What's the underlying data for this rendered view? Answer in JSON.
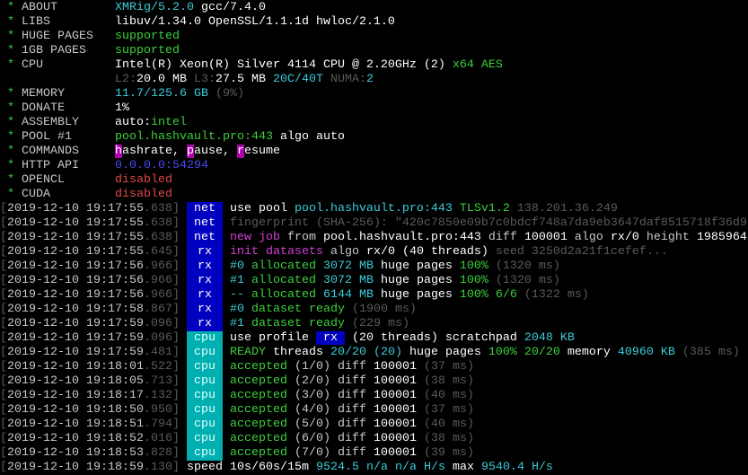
{
  "colors": {
    "tag_blue": "#0000c0",
    "tag_cyan": "#00b0b0",
    "green": "#3cd03c",
    "cyan": "#3ccbd8",
    "gray": "#5a5a5a",
    "red": "#e04848",
    "blue": "#4848f0",
    "magenta": "#b000b0"
  },
  "summary": [
    {
      "label": "ABOUT",
      "segs": [
        {
          "t": "XMRig/5.2.0",
          "c": "cyan"
        },
        {
          "t": " gcc/7.4.0",
          "c": "bright"
        }
      ]
    },
    {
      "label": "LIBS",
      "segs": [
        {
          "t": "libuv/1.34.0 OpenSSL/1.1.1d hwloc/2.1.0",
          "c": "bright"
        }
      ]
    },
    {
      "label": "HUGE PAGES",
      "segs": [
        {
          "t": "supported",
          "c": "green"
        }
      ]
    },
    {
      "label": "1GB PAGES",
      "segs": [
        {
          "t": "supported",
          "c": "green"
        }
      ]
    },
    {
      "label": "CPU",
      "segs": [
        {
          "t": "Intel(R) Xeon(R) Silver 4114 CPU @ 2.20GHz (2)",
          "c": "bright"
        },
        {
          "t": " x64 AES",
          "c": "green"
        }
      ]
    },
    {
      "label": "",
      "segs": [
        {
          "t": "L2:",
          "c": "gray"
        },
        {
          "t": "20.0 MB",
          "c": "bright"
        },
        {
          "t": " L3:",
          "c": "gray"
        },
        {
          "t": "27.5 MB",
          "c": "bright"
        },
        {
          "t": " 20C/40T",
          "c": "cyan"
        },
        {
          "t": " NUMA:",
          "c": "gray"
        },
        {
          "t": "2",
          "c": "cyan"
        }
      ]
    },
    {
      "label": "MEMORY",
      "segs": [
        {
          "t": "11.7/125.6 GB",
          "c": "cyan"
        },
        {
          "t": " (9%)",
          "c": "gray"
        }
      ]
    },
    {
      "label": "DONATE",
      "segs": [
        {
          "t": "1%",
          "c": "bright"
        }
      ]
    },
    {
      "label": "ASSEMBLY",
      "segs": [
        {
          "t": "auto:",
          "c": "bright"
        },
        {
          "t": "intel",
          "c": "green"
        }
      ]
    },
    {
      "label": "POOL #1",
      "segs": [
        {
          "t": "pool.hashvault.pro:443",
          "c": "green"
        },
        {
          "t": " algo auto",
          "c": "bright"
        }
      ]
    },
    {
      "label": "COMMANDS",
      "segs": [
        {
          "t": "h",
          "c": "hl"
        },
        {
          "t": "ashrate, ",
          "c": "bright"
        },
        {
          "t": "p",
          "c": "hl"
        },
        {
          "t": "ause, ",
          "c": "bright"
        },
        {
          "t": "r",
          "c": "hl"
        },
        {
          "t": "esume",
          "c": "bright"
        }
      ]
    },
    {
      "label": "HTTP API",
      "segs": [
        {
          "t": "0.0.0.0:54294",
          "c": "blue"
        }
      ]
    },
    {
      "label": "OPENCL",
      "segs": [
        {
          "t": "disabled",
          "c": "red"
        }
      ]
    },
    {
      "label": "CUDA",
      "segs": [
        {
          "t": "disabled",
          "c": "red"
        }
      ]
    }
  ],
  "log": [
    {
      "date": "2019-12-10 19:17:55",
      "ms": ".638",
      "tag": "net",
      "segs": [
        {
          "t": "use pool ",
          "c": "bright"
        },
        {
          "t": "pool.hashvault.pro:443",
          "c": "cyan"
        },
        {
          "t": " TLSv1.2",
          "c": "green"
        },
        {
          "t": " 138.201.36.249",
          "c": "gray"
        }
      ]
    },
    {
      "date": "2019-12-10 19:17:55",
      "ms": ".638",
      "tag": "net",
      "segs": [
        {
          "t": "fingerprint (SHA-256): \"420c7850e09b7c0bdcf748a7da9eb3647daf8515718f36d9",
          "c": "gray"
        }
      ]
    },
    {
      "date": "2019-12-10 19:17:55",
      "ms": ".638",
      "tag": "net",
      "segs": [
        {
          "t": "new job",
          "c": "magenta"
        },
        {
          "t": " from ",
          "c": "white"
        },
        {
          "t": "pool.hashvault.pro:443",
          "c": "bright"
        },
        {
          "t": " diff ",
          "c": "white"
        },
        {
          "t": "100001",
          "c": "bright"
        },
        {
          "t": " algo ",
          "c": "white"
        },
        {
          "t": "rx/0",
          "c": "bright"
        },
        {
          "t": " height ",
          "c": "white"
        },
        {
          "t": "1985964",
          "c": "bright"
        }
      ]
    },
    {
      "date": "2019-12-10 19:17:55",
      "ms": ".645",
      "tag": "rx",
      "segs": [
        {
          "t": "init datasets",
          "c": "magenta"
        },
        {
          "t": " algo ",
          "c": "white"
        },
        {
          "t": "rx/0",
          "c": "bright"
        },
        {
          "t": " (40 threads)",
          "c": "bright"
        },
        {
          "t": " seed 3250d2a21f1cefef...",
          "c": "gray"
        }
      ]
    },
    {
      "date": "2019-12-10 19:17:56",
      "ms": ".966",
      "tag": "rx",
      "segs": [
        {
          "t": "#0",
          "c": "cyan"
        },
        {
          "t": " allocated",
          "c": "green"
        },
        {
          "t": " 3072 MB",
          "c": "cyan"
        },
        {
          "t": " huge pages",
          "c": "bright"
        },
        {
          "t": " 100%",
          "c": "green"
        },
        {
          "t": " (1320 ms)",
          "c": "gray"
        }
      ]
    },
    {
      "date": "2019-12-10 19:17:56",
      "ms": ".966",
      "tag": "rx",
      "segs": [
        {
          "t": "#1",
          "c": "cyan"
        },
        {
          "t": " allocated",
          "c": "green"
        },
        {
          "t": " 3072 MB",
          "c": "cyan"
        },
        {
          "t": " huge pages",
          "c": "bright"
        },
        {
          "t": " 100%",
          "c": "green"
        },
        {
          "t": " (1320 ms)",
          "c": "gray"
        }
      ]
    },
    {
      "date": "2019-12-10 19:17:56",
      "ms": ".966",
      "tag": "rx",
      "segs": [
        {
          "t": "--",
          "c": "cyan"
        },
        {
          "t": " allocated",
          "c": "green"
        },
        {
          "t": " 6144 MB",
          "c": "cyan"
        },
        {
          "t": " huge pages",
          "c": "bright"
        },
        {
          "t": " 100% 6/6",
          "c": "green"
        },
        {
          "t": " (1322 ms)",
          "c": "gray"
        }
      ]
    },
    {
      "date": "2019-12-10 19:17:58",
      "ms": ".867",
      "tag": "rx",
      "segs": [
        {
          "t": "#0",
          "c": "cyan"
        },
        {
          "t": " dataset ready",
          "c": "green"
        },
        {
          "t": " (1900 ms)",
          "c": "gray"
        }
      ]
    },
    {
      "date": "2019-12-10 19:17:59",
      "ms": ".096",
      "tag": "rx",
      "segs": [
        {
          "t": "#1",
          "c": "cyan"
        },
        {
          "t": " dataset ready",
          "c": "green"
        },
        {
          "t": " (229 ms)",
          "c": "gray"
        }
      ]
    },
    {
      "date": "2019-12-10 19:17:59",
      "ms": ".096",
      "tag": "cpu",
      "segs": [
        {
          "t": "use profile ",
          "c": "bright"
        },
        {
          "t": " rx ",
          "c": "badge"
        },
        {
          "t": " (20 threads)",
          "c": "bright"
        },
        {
          "t": " scratchpad",
          "c": "bright"
        },
        {
          "t": " 2048 KB",
          "c": "cyan"
        }
      ]
    },
    {
      "date": "2019-12-10 19:17:59",
      "ms": ".481",
      "tag": "cpu",
      "segs": [
        {
          "t": "READY",
          "c": "green"
        },
        {
          "t": " threads",
          "c": "bright"
        },
        {
          "t": " 20/20 (20)",
          "c": "cyan"
        },
        {
          "t": " huge pages",
          "c": "bright"
        },
        {
          "t": " 100% 20/20",
          "c": "green"
        },
        {
          "t": " memory",
          "c": "bright"
        },
        {
          "t": " 40960 KB",
          "c": "cyan"
        },
        {
          "t": " (385 ms)",
          "c": "gray"
        }
      ]
    },
    {
      "date": "2019-12-10 19:18:01",
      "ms": ".522",
      "tag": "cpu",
      "segs": [
        {
          "t": "accepted",
          "c": "green"
        },
        {
          "t": " (1/0) diff ",
          "c": "white"
        },
        {
          "t": "100001",
          "c": "bright"
        },
        {
          "t": " (37 ms)",
          "c": "gray"
        }
      ]
    },
    {
      "date": "2019-12-10 19:18:05",
      "ms": ".713",
      "tag": "cpu",
      "segs": [
        {
          "t": "accepted",
          "c": "green"
        },
        {
          "t": " (2/0) diff ",
          "c": "white"
        },
        {
          "t": "100001",
          "c": "bright"
        },
        {
          "t": " (38 ms)",
          "c": "gray"
        }
      ]
    },
    {
      "date": "2019-12-10 19:18:17",
      "ms": ".132",
      "tag": "cpu",
      "segs": [
        {
          "t": "accepted",
          "c": "green"
        },
        {
          "t": " (3/0) diff ",
          "c": "white"
        },
        {
          "t": "100001",
          "c": "bright"
        },
        {
          "t": " (40 ms)",
          "c": "gray"
        }
      ]
    },
    {
      "date": "2019-12-10 19:18:50",
      "ms": ".950",
      "tag": "cpu",
      "segs": [
        {
          "t": "accepted",
          "c": "green"
        },
        {
          "t": " (4/0) diff ",
          "c": "white"
        },
        {
          "t": "100001",
          "c": "bright"
        },
        {
          "t": " (37 ms)",
          "c": "gray"
        }
      ]
    },
    {
      "date": "2019-12-10 19:18:51",
      "ms": ".794",
      "tag": "cpu",
      "segs": [
        {
          "t": "accepted",
          "c": "green"
        },
        {
          "t": " (5/0) diff ",
          "c": "white"
        },
        {
          "t": "100001",
          "c": "bright"
        },
        {
          "t": " (40 ms)",
          "c": "gray"
        }
      ]
    },
    {
      "date": "2019-12-10 19:18:52",
      "ms": ".016",
      "tag": "cpu",
      "segs": [
        {
          "t": "accepted",
          "c": "green"
        },
        {
          "t": " (6/0) diff ",
          "c": "white"
        },
        {
          "t": "100001",
          "c": "bright"
        },
        {
          "t": " (38 ms)",
          "c": "gray"
        }
      ]
    },
    {
      "date": "2019-12-10 19:18:53",
      "ms": ".828",
      "tag": "cpu",
      "segs": [
        {
          "t": "accepted",
          "c": "green"
        },
        {
          "t": " (7/0) diff ",
          "c": "white"
        },
        {
          "t": "100001",
          "c": "bright"
        },
        {
          "t": " (39 ms)",
          "c": "gray"
        }
      ]
    },
    {
      "date": "2019-12-10 19:18:59",
      "ms": ".130",
      "tag": "",
      "segs": [
        {
          "t": "speed",
          "c": "bright"
        },
        {
          "t": " 10s/60s/15m",
          "c": "bright"
        },
        {
          "t": " 9524.5",
          "c": "cyan"
        },
        {
          "t": " n/a n/a",
          "c": "cyan"
        },
        {
          "t": " H/s",
          "c": "cyan"
        },
        {
          "t": " max",
          "c": "bright"
        },
        {
          "t": " 9540.4 H/s",
          "c": "cyan"
        }
      ]
    }
  ]
}
